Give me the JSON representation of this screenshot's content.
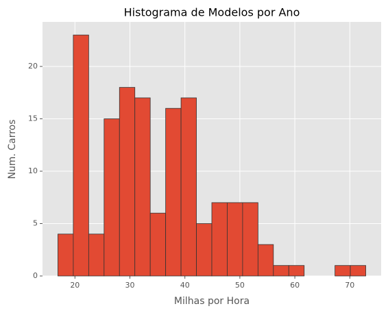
{
  "chart_data": {
    "type": "histogram",
    "title": "Histograma de Modelos por Ano",
    "x_label": "Milhas por Hora",
    "y_label": "Num. Carros",
    "bins": [
      16.9,
      19.7,
      22.5,
      25.3,
      28.1,
      30.9,
      33.7,
      36.5,
      39.3,
      42.1,
      44.9,
      47.7,
      50.5,
      53.3,
      56.1,
      58.9,
      61.7,
      64.5,
      67.3,
      70.1,
      72.9
    ],
    "counts": [
      4,
      23,
      4,
      15,
      18,
      17,
      6,
      16,
      17,
      5,
      7,
      7,
      7,
      3,
      1,
      1,
      0,
      0,
      1,
      1
    ],
    "color": "#e24a33",
    "edge_color": "#333333",
    "xlim": [
      14.1,
      75.7
    ],
    "ylim": [
      0,
      24.25
    ],
    "xticks": [
      20,
      30,
      40,
      50,
      60,
      70
    ],
    "yticks": [
      0,
      5,
      10,
      15,
      20
    ],
    "grid": true
  }
}
